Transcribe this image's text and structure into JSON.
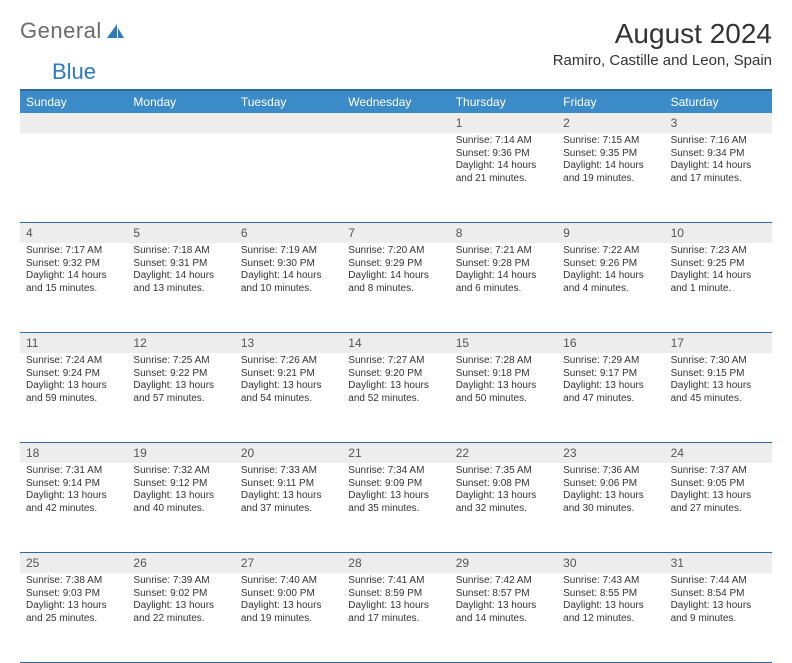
{
  "logo": {
    "text1": "General",
    "text2": "Blue"
  },
  "title": "August 2024",
  "location": "Ramiro, Castille and Leon, Spain",
  "dayHeaders": [
    "Sunday",
    "Monday",
    "Tuesday",
    "Wednesday",
    "Thursday",
    "Friday",
    "Saturday"
  ],
  "colors": {
    "headerBg": "#3b8bc9",
    "borderBlue": "#2d6a9c",
    "daynumBg": "#ededed",
    "text": "#333333",
    "logoGray": "#6b6b6b",
    "logoBlue": "#2d7bbd"
  },
  "weeks": [
    [
      {
        "num": "",
        "lines": []
      },
      {
        "num": "",
        "lines": []
      },
      {
        "num": "",
        "lines": []
      },
      {
        "num": "",
        "lines": []
      },
      {
        "num": "1",
        "lines": [
          "Sunrise: 7:14 AM",
          "Sunset: 9:36 PM",
          "Daylight: 14 hours",
          "and 21 minutes."
        ]
      },
      {
        "num": "2",
        "lines": [
          "Sunrise: 7:15 AM",
          "Sunset: 9:35 PM",
          "Daylight: 14 hours",
          "and 19 minutes."
        ]
      },
      {
        "num": "3",
        "lines": [
          "Sunrise: 7:16 AM",
          "Sunset: 9:34 PM",
          "Daylight: 14 hours",
          "and 17 minutes."
        ]
      }
    ],
    [
      {
        "num": "4",
        "lines": [
          "Sunrise: 7:17 AM",
          "Sunset: 9:32 PM",
          "Daylight: 14 hours",
          "and 15 minutes."
        ]
      },
      {
        "num": "5",
        "lines": [
          "Sunrise: 7:18 AM",
          "Sunset: 9:31 PM",
          "Daylight: 14 hours",
          "and 13 minutes."
        ]
      },
      {
        "num": "6",
        "lines": [
          "Sunrise: 7:19 AM",
          "Sunset: 9:30 PM",
          "Daylight: 14 hours",
          "and 10 minutes."
        ]
      },
      {
        "num": "7",
        "lines": [
          "Sunrise: 7:20 AM",
          "Sunset: 9:29 PM",
          "Daylight: 14 hours",
          "and 8 minutes."
        ]
      },
      {
        "num": "8",
        "lines": [
          "Sunrise: 7:21 AM",
          "Sunset: 9:28 PM",
          "Daylight: 14 hours",
          "and 6 minutes."
        ]
      },
      {
        "num": "9",
        "lines": [
          "Sunrise: 7:22 AM",
          "Sunset: 9:26 PM",
          "Daylight: 14 hours",
          "and 4 minutes."
        ]
      },
      {
        "num": "10",
        "lines": [
          "Sunrise: 7:23 AM",
          "Sunset: 9:25 PM",
          "Daylight: 14 hours",
          "and 1 minute."
        ]
      }
    ],
    [
      {
        "num": "11",
        "lines": [
          "Sunrise: 7:24 AM",
          "Sunset: 9:24 PM",
          "Daylight: 13 hours",
          "and 59 minutes."
        ]
      },
      {
        "num": "12",
        "lines": [
          "Sunrise: 7:25 AM",
          "Sunset: 9:22 PM",
          "Daylight: 13 hours",
          "and 57 minutes."
        ]
      },
      {
        "num": "13",
        "lines": [
          "Sunrise: 7:26 AM",
          "Sunset: 9:21 PM",
          "Daylight: 13 hours",
          "and 54 minutes."
        ]
      },
      {
        "num": "14",
        "lines": [
          "Sunrise: 7:27 AM",
          "Sunset: 9:20 PM",
          "Daylight: 13 hours",
          "and 52 minutes."
        ]
      },
      {
        "num": "15",
        "lines": [
          "Sunrise: 7:28 AM",
          "Sunset: 9:18 PM",
          "Daylight: 13 hours",
          "and 50 minutes."
        ]
      },
      {
        "num": "16",
        "lines": [
          "Sunrise: 7:29 AM",
          "Sunset: 9:17 PM",
          "Daylight: 13 hours",
          "and 47 minutes."
        ]
      },
      {
        "num": "17",
        "lines": [
          "Sunrise: 7:30 AM",
          "Sunset: 9:15 PM",
          "Daylight: 13 hours",
          "and 45 minutes."
        ]
      }
    ],
    [
      {
        "num": "18",
        "lines": [
          "Sunrise: 7:31 AM",
          "Sunset: 9:14 PM",
          "Daylight: 13 hours",
          "and 42 minutes."
        ]
      },
      {
        "num": "19",
        "lines": [
          "Sunrise: 7:32 AM",
          "Sunset: 9:12 PM",
          "Daylight: 13 hours",
          "and 40 minutes."
        ]
      },
      {
        "num": "20",
        "lines": [
          "Sunrise: 7:33 AM",
          "Sunset: 9:11 PM",
          "Daylight: 13 hours",
          "and 37 minutes."
        ]
      },
      {
        "num": "21",
        "lines": [
          "Sunrise: 7:34 AM",
          "Sunset: 9:09 PM",
          "Daylight: 13 hours",
          "and 35 minutes."
        ]
      },
      {
        "num": "22",
        "lines": [
          "Sunrise: 7:35 AM",
          "Sunset: 9:08 PM",
          "Daylight: 13 hours",
          "and 32 minutes."
        ]
      },
      {
        "num": "23",
        "lines": [
          "Sunrise: 7:36 AM",
          "Sunset: 9:06 PM",
          "Daylight: 13 hours",
          "and 30 minutes."
        ]
      },
      {
        "num": "24",
        "lines": [
          "Sunrise: 7:37 AM",
          "Sunset: 9:05 PM",
          "Daylight: 13 hours",
          "and 27 minutes."
        ]
      }
    ],
    [
      {
        "num": "25",
        "lines": [
          "Sunrise: 7:38 AM",
          "Sunset: 9:03 PM",
          "Daylight: 13 hours",
          "and 25 minutes."
        ]
      },
      {
        "num": "26",
        "lines": [
          "Sunrise: 7:39 AM",
          "Sunset: 9:02 PM",
          "Daylight: 13 hours",
          "and 22 minutes."
        ]
      },
      {
        "num": "27",
        "lines": [
          "Sunrise: 7:40 AM",
          "Sunset: 9:00 PM",
          "Daylight: 13 hours",
          "and 19 minutes."
        ]
      },
      {
        "num": "28",
        "lines": [
          "Sunrise: 7:41 AM",
          "Sunset: 8:59 PM",
          "Daylight: 13 hours",
          "and 17 minutes."
        ]
      },
      {
        "num": "29",
        "lines": [
          "Sunrise: 7:42 AM",
          "Sunset: 8:57 PM",
          "Daylight: 13 hours",
          "and 14 minutes."
        ]
      },
      {
        "num": "30",
        "lines": [
          "Sunrise: 7:43 AM",
          "Sunset: 8:55 PM",
          "Daylight: 13 hours",
          "and 12 minutes."
        ]
      },
      {
        "num": "31",
        "lines": [
          "Sunrise: 7:44 AM",
          "Sunset: 8:54 PM",
          "Daylight: 13 hours",
          "and 9 minutes."
        ]
      }
    ]
  ]
}
